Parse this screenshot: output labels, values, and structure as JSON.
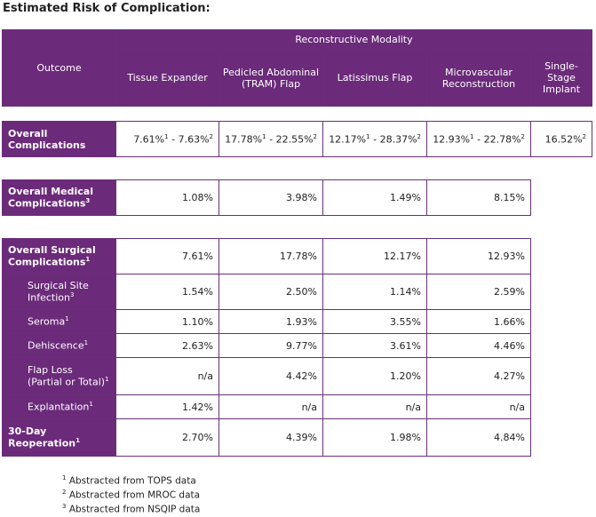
{
  "title": "Estimated Risk of Complication:",
  "header": {
    "outcome": "Outcome",
    "modality": "Reconstructive Modality",
    "columns": [
      "Tissue Expander",
      "Pedicled Abdominal (TRAM) Flap",
      "Latissimus Flap",
      "Microvascular Reconstruction",
      "Single-Stage Implant"
    ]
  },
  "overall": {
    "label": "Overall Complications",
    "values": [
      {
        "a": "7.61%",
        "a_sup": "1",
        "b": "7.63%",
        "b_sup": "2"
      },
      {
        "a": "17.78%",
        "a_sup": "1",
        "b": "22.55%",
        "b_sup": "2"
      },
      {
        "a": "12.17%",
        "a_sup": "1",
        "b": "28.37%",
        "b_sup": "2"
      },
      {
        "a": "12.93%",
        "a_sup": "1",
        "b": "22.78%",
        "b_sup": "2"
      }
    ],
    "single_stage": "16.52%",
    "single_stage_sup": "2"
  },
  "medical": {
    "label": "Overall Medical Complications",
    "sup": "3",
    "values": [
      "1.08%",
      "3.98%",
      "1.49%",
      "8.15%"
    ]
  },
  "surgical": [
    {
      "label": "Overall Surgical Complications",
      "sup": "1",
      "values": [
        "7.61%",
        "17.78%",
        "12.17%",
        "12.93%"
      ],
      "main": true
    },
    {
      "label": "Surgical Site Infection",
      "sup": "3",
      "values": [
        "1.54%",
        "2.50%",
        "1.14%",
        "2.59%"
      ]
    },
    {
      "label": "Seroma",
      "sup": "1",
      "values": [
        "1.10%",
        "1.93%",
        "3.55%",
        "1.66%"
      ]
    },
    {
      "label": "Dehiscence",
      "sup": "1",
      "values": [
        "2.63%",
        "9.77%",
        "3.61%",
        "4.46%"
      ]
    },
    {
      "label": "Flap Loss (Partial or Total)",
      "sup": "1",
      "values": [
        "n/a",
        "4.42%",
        "1.20%",
        "4.27%"
      ]
    },
    {
      "label": "Explantation",
      "sup": "1",
      "values": [
        "1.42%",
        "n/a",
        "n/a",
        "n/a"
      ]
    },
    {
      "label": "30-Day Reoperation",
      "sup": "1",
      "values": [
        "2.70%",
        "4.39%",
        "1.98%",
        "4.84%"
      ],
      "main": true
    }
  ],
  "footnotes": [
    {
      "num": "1",
      "text": "Abstracted from TOPS data"
    },
    {
      "num": "2",
      "text": "Abstracted from MROC data"
    },
    {
      "num": "3",
      "text": "Abstracted from NSQIP data"
    }
  ],
  "colors": {
    "header_purple": "#6b2a7a"
  }
}
